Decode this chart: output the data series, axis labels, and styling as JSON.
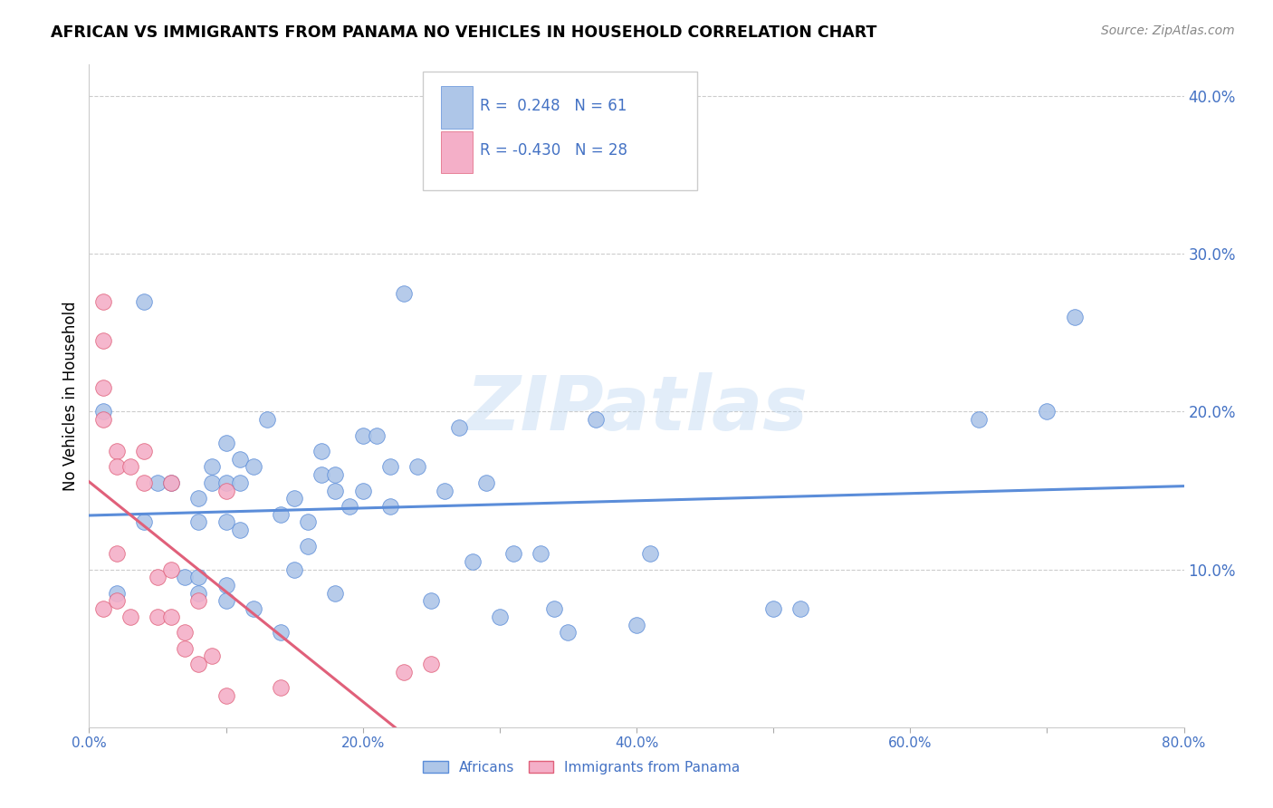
{
  "title": "AFRICAN VS IMMIGRANTS FROM PANAMA NO VEHICLES IN HOUSEHOLD CORRELATION CHART",
  "source": "Source: ZipAtlas.com",
  "ylabel": "No Vehicles in Household",
  "xlim": [
    0.0,
    0.8
  ],
  "ylim": [
    0.0,
    0.42
  ],
  "xtick_labels": [
    "0.0%",
    "",
    "20.0%",
    "",
    "40.0%",
    "",
    "60.0%",
    "",
    "80.0%"
  ],
  "xtick_vals": [
    0.0,
    0.1,
    0.2,
    0.3,
    0.4,
    0.5,
    0.6,
    0.7,
    0.8
  ],
  "ytick_labels": [
    "10.0%",
    "20.0%",
    "30.0%",
    "40.0%"
  ],
  "ytick_vals": [
    0.1,
    0.2,
    0.3,
    0.4
  ],
  "legend_label1": "Africans",
  "legend_label2": "Immigrants from Panama",
  "r1": 0.248,
  "n1": 61,
  "r2": -0.43,
  "n2": 28,
  "color_blue": "#aec6e8",
  "color_pink": "#f4afc8",
  "line_blue": "#5b8dd9",
  "line_pink": "#e0607a",
  "text_color": "#4472c4",
  "grid_color": "#cccccc",
  "watermark": "ZIPatlas",
  "africans_x": [
    0.01,
    0.02,
    0.04,
    0.04,
    0.05,
    0.06,
    0.07,
    0.08,
    0.08,
    0.08,
    0.08,
    0.09,
    0.09,
    0.1,
    0.1,
    0.1,
    0.1,
    0.1,
    0.11,
    0.11,
    0.11,
    0.12,
    0.12,
    0.13,
    0.14,
    0.14,
    0.15,
    0.15,
    0.16,
    0.16,
    0.17,
    0.17,
    0.18,
    0.18,
    0.18,
    0.19,
    0.2,
    0.2,
    0.21,
    0.22,
    0.22,
    0.23,
    0.24,
    0.25,
    0.26,
    0.27,
    0.28,
    0.29,
    0.3,
    0.31,
    0.33,
    0.34,
    0.35,
    0.37,
    0.4,
    0.41,
    0.5,
    0.52,
    0.65,
    0.7,
    0.72
  ],
  "africans_y": [
    0.2,
    0.085,
    0.27,
    0.13,
    0.155,
    0.155,
    0.095,
    0.145,
    0.13,
    0.095,
    0.085,
    0.165,
    0.155,
    0.18,
    0.155,
    0.13,
    0.09,
    0.08,
    0.17,
    0.155,
    0.125,
    0.165,
    0.075,
    0.195,
    0.135,
    0.06,
    0.145,
    0.1,
    0.13,
    0.115,
    0.175,
    0.16,
    0.16,
    0.15,
    0.085,
    0.14,
    0.185,
    0.15,
    0.185,
    0.165,
    0.14,
    0.275,
    0.165,
    0.08,
    0.15,
    0.19,
    0.105,
    0.155,
    0.07,
    0.11,
    0.11,
    0.075,
    0.06,
    0.195,
    0.065,
    0.11,
    0.075,
    0.075,
    0.195,
    0.2,
    0.26
  ],
  "panama_x": [
    0.01,
    0.01,
    0.01,
    0.01,
    0.01,
    0.02,
    0.02,
    0.02,
    0.02,
    0.03,
    0.03,
    0.04,
    0.04,
    0.05,
    0.05,
    0.06,
    0.06,
    0.06,
    0.07,
    0.07,
    0.08,
    0.08,
    0.09,
    0.1,
    0.1,
    0.14,
    0.23,
    0.25
  ],
  "panama_y": [
    0.27,
    0.245,
    0.215,
    0.195,
    0.075,
    0.175,
    0.165,
    0.11,
    0.08,
    0.165,
    0.07,
    0.175,
    0.155,
    0.095,
    0.07,
    0.155,
    0.1,
    0.07,
    0.06,
    0.05,
    0.08,
    0.04,
    0.045,
    0.15,
    0.02,
    0.025,
    0.035,
    0.04
  ]
}
